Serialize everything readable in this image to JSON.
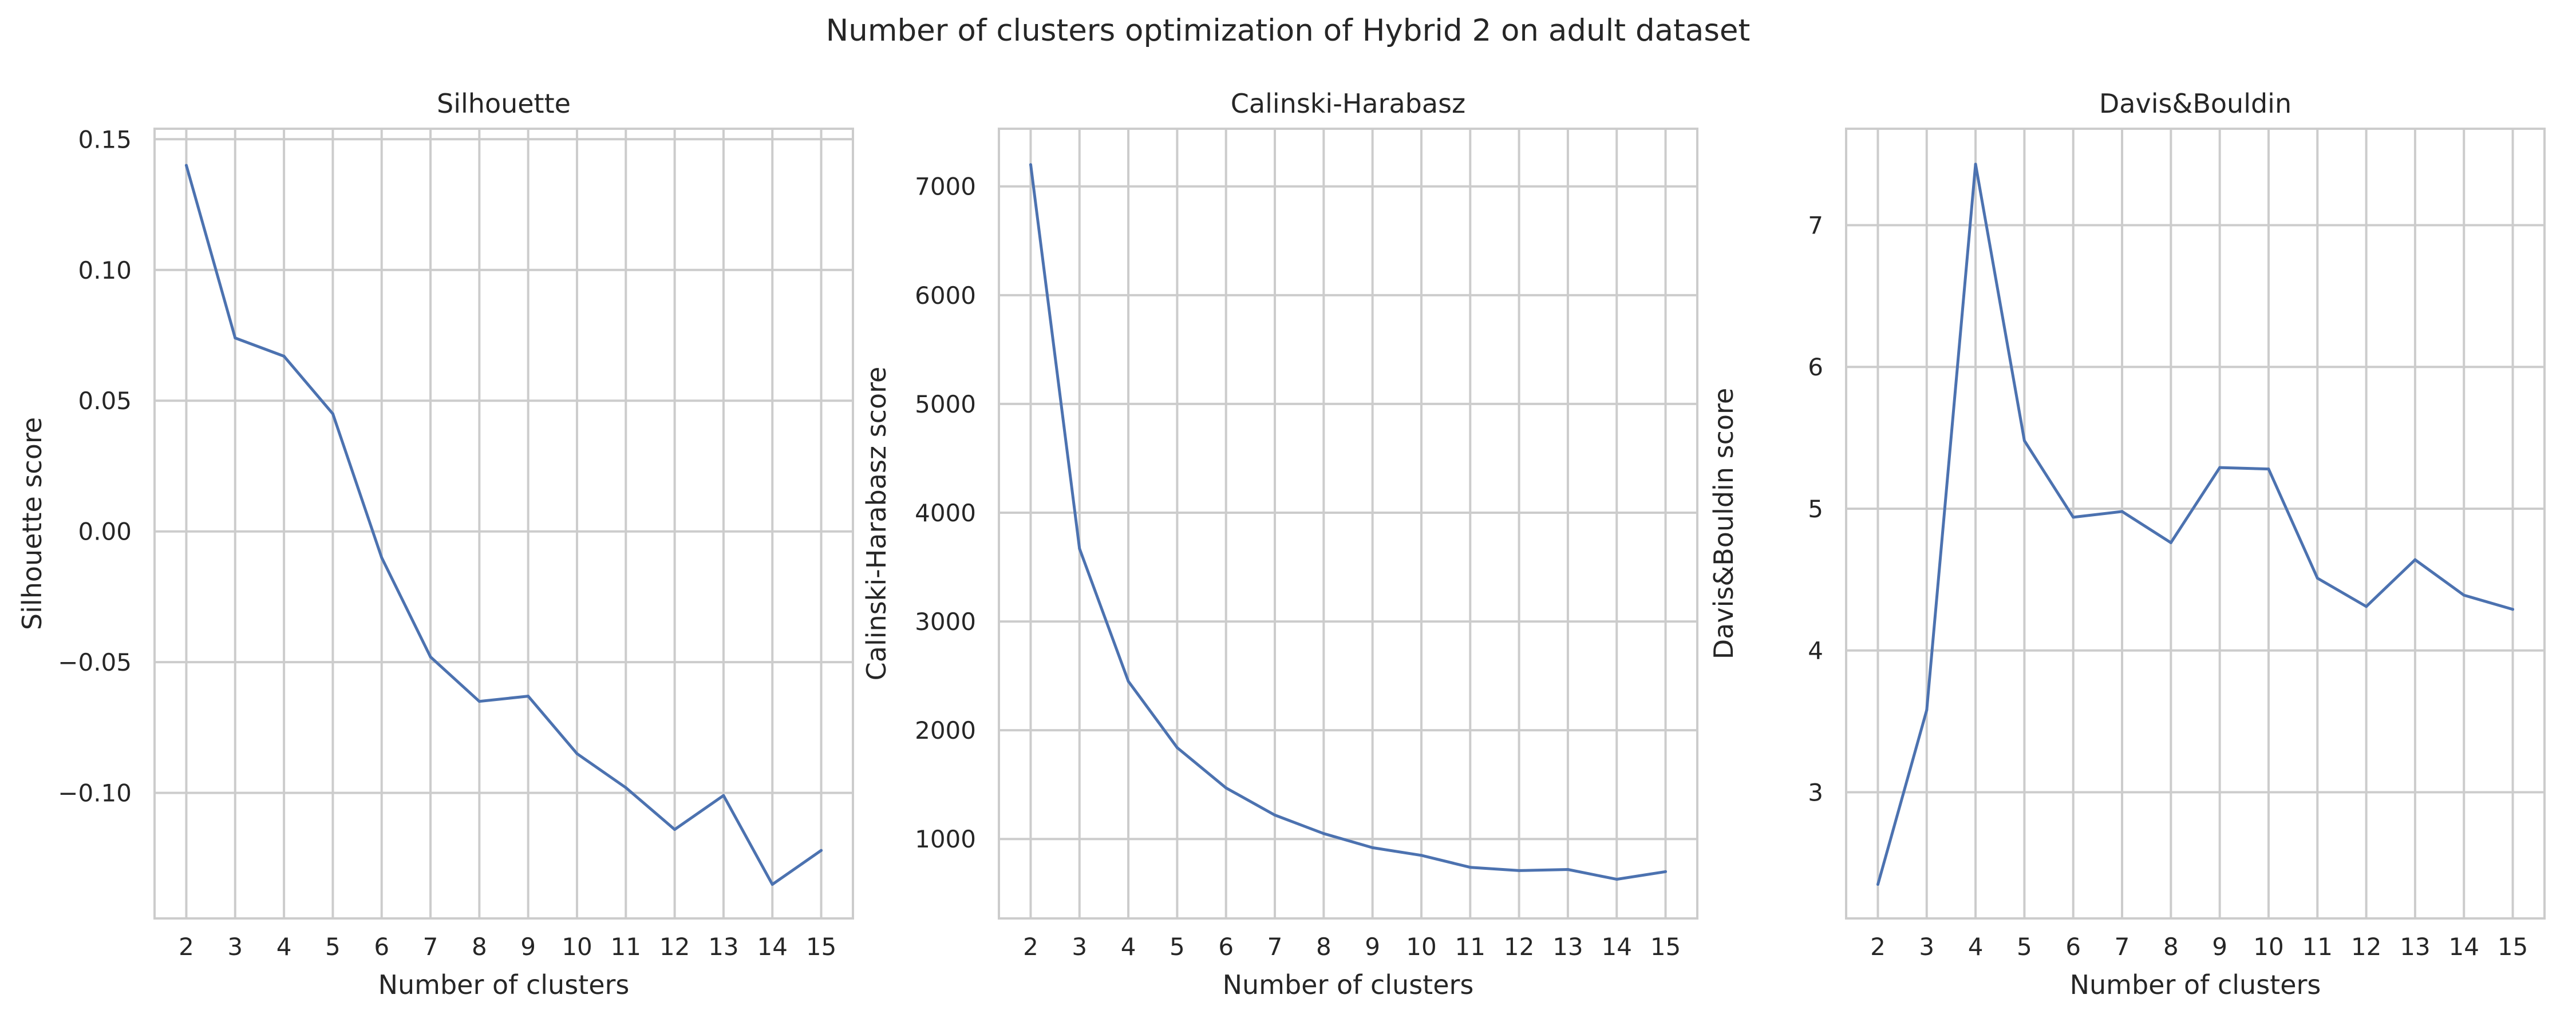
{
  "figure_title": "Number of clusters optimization of Hybrid 2 on adult dataset",
  "colors": {
    "series": "#4c72b0",
    "grid": "#cccccc",
    "text": "#262626"
  },
  "chart_data": [
    {
      "type": "line",
      "title": "Silhouette",
      "xlabel": "Number of clusters",
      "ylabel": "Silhouette score",
      "x": [
        2,
        3,
        4,
        5,
        6,
        7,
        8,
        9,
        10,
        11,
        12,
        13,
        14,
        15
      ],
      "values": [
        0.14,
        0.074,
        0.067,
        0.045,
        -0.01,
        -0.048,
        -0.065,
        -0.063,
        -0.085,
        -0.098,
        -0.114,
        -0.101,
        -0.135,
        -0.122
      ],
      "xlim": [
        1.35,
        15.65
      ],
      "ylim": [
        -0.148,
        0.154
      ],
      "yticks": [
        -0.1,
        -0.05,
        0.0,
        0.05,
        0.1,
        0.15
      ],
      "ytick_labels": [
        "−0.10",
        "−0.05",
        "0.00",
        "0.05",
        "0.10",
        "0.15"
      ],
      "grid": true
    },
    {
      "type": "line",
      "title": "Calinski-Harabasz",
      "xlabel": "Number of clusters",
      "ylabel": "Calinski-Harabasz score",
      "x": [
        2,
        3,
        4,
        5,
        6,
        7,
        8,
        9,
        10,
        11,
        12,
        13,
        14,
        15
      ],
      "values": [
        7200,
        3670,
        2450,
        1840,
        1470,
        1220,
        1050,
        920,
        850,
        740,
        710,
        720,
        630,
        700
      ],
      "xlim": [
        1.35,
        15.65
      ],
      "ylim": [
        270,
        7530
      ],
      "yticks": [
        1000,
        2000,
        3000,
        4000,
        5000,
        6000,
        7000
      ],
      "ytick_labels": [
        "1000",
        "2000",
        "3000",
        "4000",
        "5000",
        "6000",
        "7000"
      ],
      "grid": true
    },
    {
      "type": "line",
      "title": "Davis&Bouldin",
      "xlabel": "Number of clusters",
      "ylabel": "Davis&Bouldin score",
      "x": [
        2,
        3,
        4,
        5,
        6,
        7,
        8,
        9,
        10,
        11,
        12,
        13,
        14,
        15
      ],
      "values": [
        2.35,
        3.58,
        7.43,
        5.48,
        4.94,
        4.98,
        4.76,
        5.29,
        5.28,
        4.51,
        4.31,
        4.64,
        4.39,
        4.29
      ],
      "xlim": [
        1.35,
        15.65
      ],
      "ylim": [
        2.11,
        7.68
      ],
      "yticks": [
        3,
        4,
        5,
        6,
        7
      ],
      "ytick_labels": [
        "3",
        "4",
        "5",
        "6",
        "7"
      ],
      "grid": true
    }
  ]
}
